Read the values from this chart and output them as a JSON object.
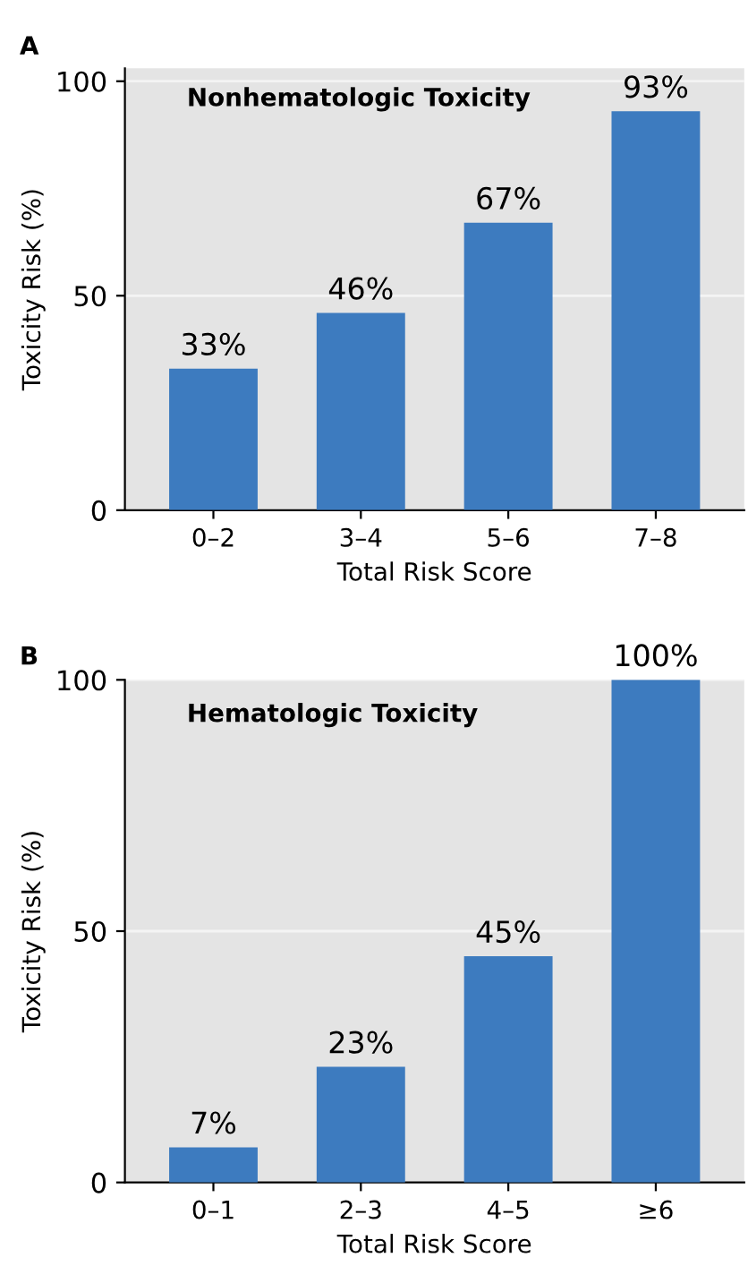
{
  "chart_data": [
    {
      "type": "bar",
      "title": "A",
      "subtitle": "Nonhematologic Toxicity",
      "xlabel": "Total Risk Score",
      "ylabel": "Toxicity Risk (%)",
      "categories": [
        "0–2",
        "3–4",
        "5–6",
        "7–8"
      ],
      "values": [
        33,
        46,
        67,
        93
      ],
      "value_labels": [
        "33%",
        "46%",
        "67%",
        "93%"
      ],
      "color": "#3d7bbf",
      "ylim": [
        0,
        103
      ],
      "yticks": [
        0,
        50,
        100
      ],
      "grid": "y"
    },
    {
      "type": "bar",
      "title": "B",
      "subtitle": "Hematologic Toxicity",
      "xlabel": "Total Risk Score",
      "ylabel": "Toxicity Risk (%)",
      "categories": [
        "0–1",
        "2–3",
        "4–5",
        "≥6"
      ],
      "values": [
        7,
        23,
        45,
        100
      ],
      "value_labels": [
        "7%",
        "23%",
        "45%",
        "100%"
      ],
      "color": "#3d7bbf",
      "ylim": [
        0,
        100
      ],
      "yticks": [
        0,
        50,
        100
      ],
      "grid": "y"
    }
  ]
}
